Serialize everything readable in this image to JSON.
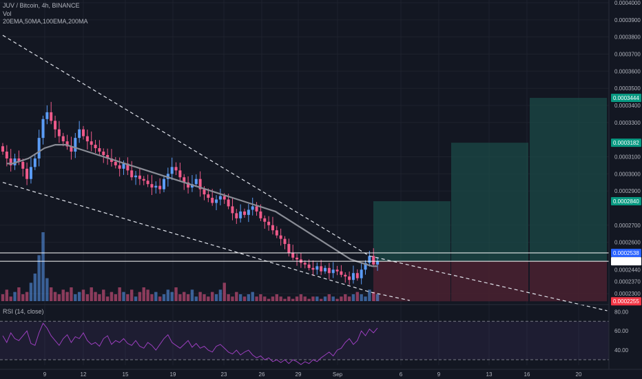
{
  "header": {
    "title": "JUV / Bitcoin, 4h, BINANCE",
    "vol": "Vol",
    "indicators": "20EMA,50MA,100EMA,200MA",
    "rsi": "RSI (14, close)"
  },
  "colors": {
    "background": "#131722",
    "up": "#5b9cf6",
    "down": "#ef5a8a",
    "ma": "#8a8d96",
    "target_fill": "#1b4a47",
    "stop_fill": "#4a2130",
    "rsi": "#9c3fbf",
    "tag_green": "#089981",
    "tag_blue": "#2962ff",
    "tag_red": "#f23645"
  },
  "chart_data": [
    {
      "type": "candlestick",
      "title": "JUV / Bitcoin, 4h, BINANCE",
      "price_axis": {
        "ticks": [
          "0.0004000",
          "0.0003900",
          "0.0003800",
          "0.0003700",
          "0.0003600",
          "0.0003500",
          "0.0003400",
          "0.0003300",
          "0.0003100",
          "0.0003000",
          "0.0002900",
          "0.0002700",
          "0.0002600",
          "0.0002300"
        ],
        "ylim": [
          0.000226,
          0.0004
        ]
      },
      "time_axis": {
        "ticks": [
          "9",
          "12",
          "15",
          "19",
          "23",
          "26",
          "29",
          "Sep",
          "6",
          "9",
          "13",
          "16",
          "20"
        ]
      },
      "price_tags": [
        {
          "label": "0.0003444",
          "value": 0.0003444,
          "color": "green"
        },
        {
          "label": "0.0003182",
          "value": 0.0003182,
          "color": "green"
        },
        {
          "label": "0.0002840",
          "value": 0.000284,
          "color": "green"
        },
        {
          "label": "0.0002538",
          "value": 0.0002538,
          "color": "blue"
        },
        {
          "label": "0.0002489",
          "value": 0.0002489,
          "color": "white"
        },
        {
          "label": "0.0002440",
          "value": 0.000244,
          "color": "none"
        },
        {
          "label": "0.0002370",
          "value": 0.000237,
          "color": "none"
        },
        {
          "label": "0.0002255",
          "value": 0.0002255,
          "color": "red"
        }
      ],
      "entry_lines": [
        0.0002538,
        0.0002489
      ],
      "targets": [
        0.000284,
        0.0003182,
        0.0003444
      ],
      "stop": 0.0002255,
      "wedge": {
        "upper": [
          [
            0,
            0.000381
          ],
          [
            91,
            0.000252
          ],
          [
            150,
            0.00022
          ]
        ],
        "lower": [
          [
            0,
            0.000295
          ],
          [
            91,
            0.000231
          ],
          [
            101,
            0.000226
          ]
        ]
      },
      "close_series": [
        0.000313,
        0.000309,
        0.000305,
        0.000309,
        0.000307,
        0.000303,
        0.000297,
        0.000304,
        0.000309,
        0.000321,
        0.000332,
        0.000336,
        0.000331,
        0.000326,
        0.000322,
        0.000319,
        0.000316,
        0.000313,
        0.000321,
        0.000326,
        0.000322,
        0.000319,
        0.000317,
        0.000315,
        0.000313,
        0.000311,
        0.000309,
        0.000307,
        0.000305,
        0.000303,
        0.000306,
        0.000302,
        0.000298,
        0.000299,
        0.000297,
        0.000296,
        0.000294,
        0.000292,
        0.000293,
        0.000291,
        0.000297,
        0.0003,
        0.000304,
        0.000302,
        0.000298,
        0.000295,
        0.000292,
        0.000294,
        0.000297,
        0.000291,
        0.000288,
        0.000286,
        0.000283,
        0.000285,
        0.000287,
        0.000285,
        0.000281,
        0.000277,
        0.000274,
        0.000278,
        0.000276,
        0.000279,
        0.000281,
        0.000278,
        0.000274,
        0.000272,
        0.00027,
        0.000267,
        0.000264,
        0.000262,
        0.000259,
        0.000254,
        0.000251,
        0.00025,
        0.000248,
        0.000247,
        0.000245,
        0.000244,
        0.000246,
        0.000243,
        0.000245,
        0.000242,
        0.000244,
        0.000243,
        0.000241,
        0.00024,
        0.000238,
        0.000242,
        0.000239,
        0.000244,
        0.000248,
        0.000252,
        0.000247,
        0.000249
      ],
      "ma_series": [
        0.000306,
        0.000306,
        0.000307,
        0.000308,
        0.000309,
        0.000311,
        0.000313,
        0.000315,
        0.000316,
        0.000317,
        0.000317,
        0.000317,
        0.000316,
        0.000315,
        0.000314,
        0.000313,
        0.000312,
        0.000311,
        0.00031,
        0.000309,
        0.000308,
        0.000307,
        0.000306,
        0.000305,
        0.000304,
        0.000303,
        0.000302,
        0.000301,
        0.0003,
        0.000299,
        0.000298,
        0.000297,
        0.000296,
        0.000295,
        0.000294,
        0.000293,
        0.000292,
        0.000291,
        0.00029,
        0.000289,
        0.000288,
        0.000287,
        0.000286,
        0.000285,
        0.000284,
        0.000283,
        0.000282,
        0.000281,
        0.00028,
        0.000279,
        0.000278,
        0.000276,
        0.000274,
        0.000272,
        0.00027,
        0.000268,
        0.000266,
        0.000264,
        0.000262,
        0.00026,
        0.000258,
        0.000256,
        0.000254,
        0.000252,
        0.00025,
        0.000249,
        0.000248,
        0.000247,
        0.000246,
        0.000246
      ],
      "volume": [
        3,
        5,
        2,
        4,
        6,
        3,
        4,
        8,
        12,
        20,
        30,
        10,
        6,
        4,
        3,
        5,
        4,
        6,
        3,
        4,
        5,
        3,
        6,
        4,
        3,
        5,
        2,
        4,
        3,
        6,
        4,
        3,
        5,
        2,
        4,
        6,
        5,
        3,
        4,
        2,
        3,
        5,
        4,
        6,
        3,
        4,
        3,
        5,
        2,
        4,
        3,
        2,
        4,
        3,
        5,
        8,
        3,
        2,
        4,
        3,
        2,
        3,
        4,
        2,
        3,
        2,
        1,
        2,
        3,
        2,
        1,
        2,
        1,
        2,
        3,
        2,
        1,
        2,
        2,
        1,
        2,
        3,
        2,
        1,
        2,
        3,
        2,
        3,
        4,
        3,
        2,
        5,
        4,
        3
      ]
    },
    {
      "type": "line",
      "title": "RSI (14, close)",
      "ylim": [
        20,
        86
      ],
      "y_ticks": [
        "80.00",
        "60.00",
        "40.00"
      ],
      "bands": [
        70,
        30
      ],
      "values": [
        55,
        48,
        58,
        52,
        50,
        55,
        60,
        47,
        45,
        58,
        68,
        63,
        55,
        50,
        45,
        52,
        56,
        48,
        54,
        52,
        58,
        50,
        46,
        48,
        44,
        52,
        55,
        46,
        50,
        48,
        52,
        47,
        45,
        50,
        44,
        42,
        48,
        45,
        40,
        46,
        52,
        56,
        48,
        45,
        42,
        46,
        50,
        43,
        47,
        42,
        44,
        40,
        38,
        44,
        46,
        42,
        38,
        36,
        40,
        35,
        38,
        40,
        35,
        32,
        34,
        30,
        32,
        28,
        30,
        27,
        30,
        26,
        30,
        28,
        25,
        28,
        26,
        30,
        28,
        32,
        35,
        38,
        34,
        40,
        42,
        48,
        52,
        46,
        50,
        60,
        55,
        62,
        58,
        63
      ]
    }
  ]
}
